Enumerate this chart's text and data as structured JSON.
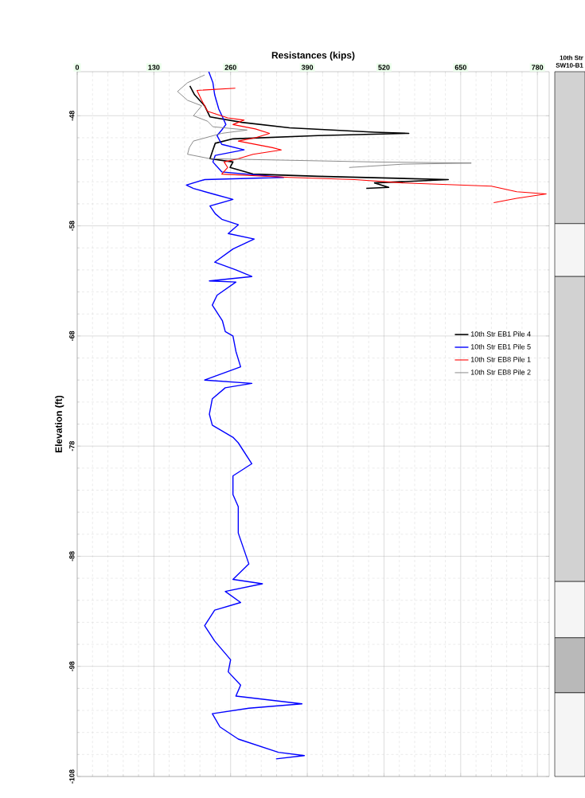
{
  "chart_data": {
    "type": "line",
    "xlabel": "Resistances (kips)",
    "ylabel": "Elevation (ft)",
    "xlim": [
      0,
      800
    ],
    "ylim": [
      -108,
      -44
    ],
    "xticks": [
      0,
      130,
      260,
      390,
      520,
      650,
      780
    ],
    "yticks": [
      -48,
      -58,
      -68,
      -78,
      -88,
      -98,
      -108
    ],
    "grid": true,
    "legend": "right",
    "marker": "none",
    "line_style": "solid",
    "annotations": [
      "10th Str\nSW10-B1"
    ],
    "series": [
      {
        "name": "10th Str EB1 Pile 4",
        "color": "#000000",
        "x": [
          191,
          199,
          216,
          225,
          279,
          360,
          504,
          562,
          408,
          264,
          234,
          230,
          225,
          264,
          259,
          298,
          408,
          629,
          504,
          528,
          490
        ],
        "values": [
          -45.3,
          -46.1,
          -47.1,
          -48.1,
          -48.6,
          -49.1,
          -49.5,
          -49.6,
          -49.8,
          -50.1,
          -50.5,
          -51.1,
          -51.9,
          -52.2,
          -52.7,
          -53.3,
          -53.5,
          -53.8,
          -54.1,
          -54.5,
          -54.6
        ]
      },
      {
        "name": "10th Str EB1 Pile 5",
        "color": "#0000ff",
        "x": [
          223,
          230,
          233,
          240,
          247,
          252,
          245,
          237,
          245,
          283,
          234,
          230,
          245,
          350,
          216,
          185,
          197,
          230,
          264,
          225,
          234,
          245,
          273,
          256,
          300,
          264,
          233,
          269,
          296,
          224,
          269,
          237,
          229,
          246,
          251,
          264,
          269,
          277,
          216,
          296,
          251,
          229,
          224,
          229,
          264,
          273,
          296,
          264,
          264,
          273,
          273,
          291,
          264,
          314,
          251,
          277,
          233,
          216,
          233,
          260,
          256,
          277,
          269,
          381,
          291,
          229,
          242,
          273,
          341,
          385,
          337
        ],
        "values": [
          -44.0,
          -45.0,
          -46.1,
          -47.4,
          -48.2,
          -48.8,
          -49.3,
          -49.8,
          -50.6,
          -51.1,
          -51.6,
          -52.2,
          -53.1,
          -53.6,
          -53.8,
          -54.3,
          -54.6,
          -55.1,
          -55.6,
          -56.2,
          -56.9,
          -57.4,
          -57.9,
          -58.7,
          -59.2,
          -60.1,
          -61.3,
          -62.0,
          -62.6,
          -63.0,
          -63.1,
          -64.3,
          -65.2,
          -66.6,
          -67.6,
          -68.0,
          -69.4,
          -70.8,
          -72.0,
          -72.3,
          -72.7,
          -73.7,
          -75.1,
          -76.1,
          -77.2,
          -77.7,
          -79.6,
          -80.7,
          -82.4,
          -83.5,
          -85.9,
          -88.7,
          -90.1,
          -90.5,
          -91.2,
          -92.2,
          -92.9,
          -94.3,
          -95.7,
          -97.4,
          -98.5,
          -99.7,
          -100.7,
          -101.4,
          -101.8,
          -102.3,
          -103.5,
          -104.6,
          -105.8,
          -106.1,
          -106.4
        ]
      },
      {
        "name": "10th Str EB8 Pile 1",
        "color": "#ff0000",
        "x": [
          268,
          203,
          211,
          221,
          255,
          283,
          264,
          302,
          326,
          302,
          273,
          331,
          346,
          298,
          273,
          249,
          255,
          245,
          360,
          470,
          552,
          702,
          745,
          795,
          745,
          706
        ],
        "values": [
          -45.5,
          -45.7,
          -46.6,
          -47.6,
          -48.2,
          -48.4,
          -48.8,
          -49.2,
          -49.6,
          -50.0,
          -50.3,
          -50.9,
          -51.1,
          -51.5,
          -51.9,
          -52.2,
          -52.7,
          -53.3,
          -53.6,
          -53.8,
          -54.1,
          -54.4,
          -54.9,
          -55.1,
          -55.5,
          -55.9
        ]
      },
      {
        "name": "10th Str EB8 Pile 2",
        "color": "#808080",
        "x": [
          216,
          187,
          170,
          187,
          211,
          197,
          221,
          230,
          288,
          245,
          197,
          190,
          187,
          225,
          504,
          668,
          552,
          461
        ],
        "values": [
          -44.3,
          -45.0,
          -45.8,
          -46.6,
          -47.1,
          -48.0,
          -48.5,
          -49.0,
          -49.3,
          -49.6,
          -50.3,
          -50.9,
          -51.5,
          -51.9,
          -52.2,
          -52.3,
          -52.4,
          -52.7
        ]
      }
    ]
  }
}
